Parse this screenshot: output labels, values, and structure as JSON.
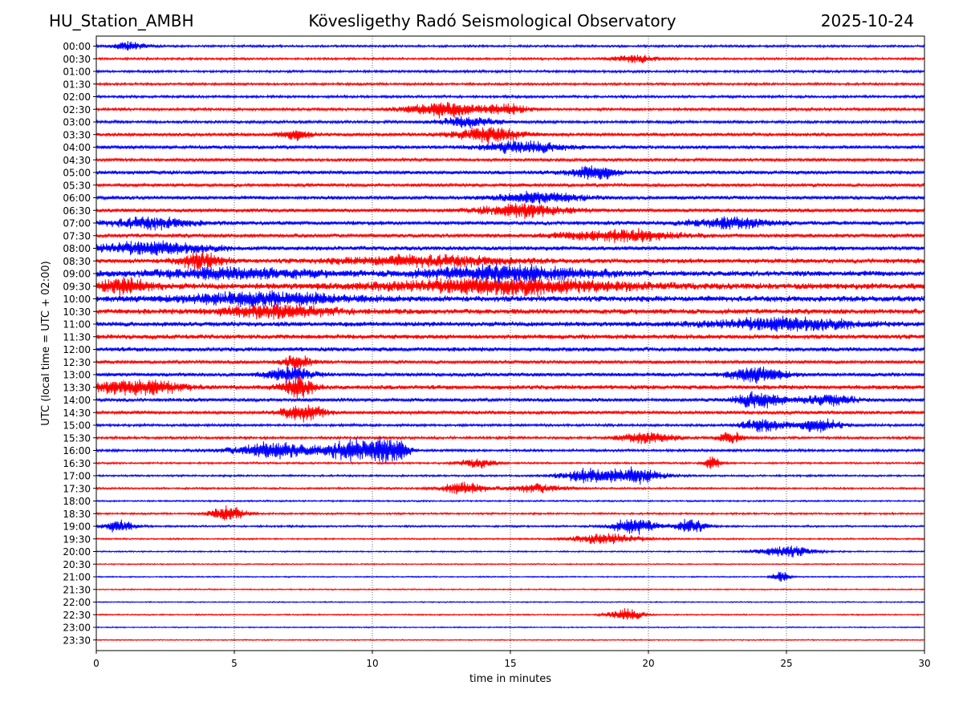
{
  "header": {
    "station": "HU_Station_AMBH",
    "title": "Kövesligethy Radó Seismological Observatory",
    "date": "2025-10-24"
  },
  "chart_data": {
    "type": "line",
    "subtype": "helicorder",
    "xlabel": "time in minutes",
    "ylabel": "UTC (local time = UTC + 02:00)",
    "xlim": [
      0,
      30
    ],
    "xticks": [
      0,
      5,
      10,
      15,
      20,
      25,
      30
    ],
    "grid": "vertical dotted lines at each x tick",
    "colors": {
      "even_rows": "#0000ff",
      "odd_rows": "#ff0000"
    },
    "rows": [
      {
        "label": "00:00",
        "activity": 0.35,
        "bursts": [
          [
            1.2,
            0.6,
            1.3
          ]
        ]
      },
      {
        "label": "00:30",
        "activity": 0.35,
        "bursts": [
          [
            19.5,
            0.8,
            1.2
          ]
        ]
      },
      {
        "label": "01:00",
        "activity": 0.38,
        "bursts": []
      },
      {
        "label": "01:30",
        "activity": 0.38,
        "bursts": []
      },
      {
        "label": "02:00",
        "activity": 0.4,
        "bursts": []
      },
      {
        "label": "02:30",
        "activity": 0.45,
        "bursts": [
          [
            12.5,
            1.2,
            2.4
          ],
          [
            14.8,
            0.8,
            1.8
          ]
        ]
      },
      {
        "label": "03:00",
        "activity": 0.45,
        "bursts": [
          [
            13.5,
            1.0,
            1.6
          ]
        ]
      },
      {
        "label": "03:30",
        "activity": 0.55,
        "bursts": [
          [
            14.2,
            1.2,
            2.2
          ],
          [
            7.2,
            0.6,
            1.4
          ]
        ]
      },
      {
        "label": "04:00",
        "activity": 0.55,
        "bursts": [
          [
            15.5,
            1.5,
            1.8
          ]
        ]
      },
      {
        "label": "04:30",
        "activity": 0.5,
        "bursts": []
      },
      {
        "label": "05:00",
        "activity": 0.6,
        "bursts": [
          [
            18.0,
            0.8,
            2.2
          ]
        ]
      },
      {
        "label": "05:30",
        "activity": 0.55,
        "bursts": []
      },
      {
        "label": "06:00",
        "activity": 0.6,
        "bursts": [
          [
            16.0,
            1.5,
            1.5
          ]
        ]
      },
      {
        "label": "06:30",
        "activity": 0.6,
        "bursts": [
          [
            15.5,
            1.5,
            2.0
          ]
        ]
      },
      {
        "label": "07:00",
        "activity": 0.65,
        "bursts": [
          [
            2.0,
            1.5,
            1.6
          ],
          [
            23.0,
            1.5,
            1.6
          ]
        ]
      },
      {
        "label": "07:30",
        "activity": 0.65,
        "bursts": [
          [
            19.0,
            2.0,
            1.8
          ]
        ]
      },
      {
        "label": "08:00",
        "activity": 0.7,
        "bursts": [
          [
            2.0,
            2.0,
            1.8
          ]
        ]
      },
      {
        "label": "08:30",
        "activity": 0.75,
        "bursts": [
          [
            3.8,
            0.8,
            2.4
          ],
          [
            12.0,
            3.0,
            1.5
          ]
        ]
      },
      {
        "label": "09:00",
        "activity": 0.9,
        "bursts": [
          [
            15.0,
            3.0,
            2.2
          ],
          [
            5.0,
            3.0,
            1.5
          ]
        ]
      },
      {
        "label": "09:30",
        "activity": 1.0,
        "bursts": [
          [
            15.0,
            4.0,
            2.2
          ],
          [
            1.0,
            1.0,
            2.2
          ]
        ]
      },
      {
        "label": "10:00",
        "activity": 0.95,
        "bursts": [
          [
            6.0,
            3.0,
            1.8
          ]
        ]
      },
      {
        "label": "10:30",
        "activity": 0.85,
        "bursts": [
          [
            6.5,
            2.0,
            1.8
          ]
        ]
      },
      {
        "label": "11:00",
        "activity": 0.8,
        "bursts": [
          [
            25.0,
            2.5,
            1.8
          ]
        ]
      },
      {
        "label": "11:30",
        "activity": 0.75,
        "bursts": []
      },
      {
        "label": "12:00",
        "activity": 0.7,
        "bursts": []
      },
      {
        "label": "12:30",
        "activity": 0.55,
        "bursts": [
          [
            7.3,
            0.5,
            2.0
          ]
        ]
      },
      {
        "label": "13:00",
        "activity": 0.6,
        "bursts": [
          [
            7.0,
            0.8,
            2.2
          ],
          [
            24.0,
            1.0,
            2.4
          ]
        ]
      },
      {
        "label": "13:30",
        "activity": 0.7,
        "bursts": [
          [
            1.5,
            1.5,
            2.4
          ],
          [
            7.3,
            0.6,
            3.2
          ]
        ]
      },
      {
        "label": "14:00",
        "activity": 0.55,
        "bursts": [
          [
            24.0,
            0.8,
            2.8
          ],
          [
            26.5,
            1.0,
            1.6
          ]
        ]
      },
      {
        "label": "14:30",
        "activity": 0.55,
        "bursts": [
          [
            7.5,
            0.8,
            2.4
          ]
        ]
      },
      {
        "label": "15:00",
        "activity": 0.4,
        "bursts": [
          [
            24.2,
            0.8,
            2.0
          ],
          [
            26.2,
            0.8,
            2.0
          ]
        ]
      },
      {
        "label": "15:30",
        "activity": 0.4,
        "bursts": [
          [
            20.0,
            1.0,
            1.8
          ],
          [
            23.0,
            0.5,
            1.6
          ]
        ]
      },
      {
        "label": "16:00",
        "activity": 0.4,
        "bursts": [
          [
            6.5,
            1.5,
            2.6
          ],
          [
            9.2,
            0.8,
            3.2
          ],
          [
            10.3,
            0.6,
            3.2
          ],
          [
            11.0,
            0.4,
            2.6
          ]
        ]
      },
      {
        "label": "16:30",
        "activity": 0.3,
        "bursts": [
          [
            13.8,
            0.6,
            1.6
          ],
          [
            22.3,
            0.3,
            2.0
          ]
        ]
      },
      {
        "label": "17:00",
        "activity": 0.3,
        "bursts": [
          [
            17.8,
            1.0,
            2.0
          ],
          [
            19.5,
            1.0,
            2.4
          ]
        ]
      },
      {
        "label": "17:30",
        "activity": 0.3,
        "bursts": [
          [
            13.3,
            0.8,
            2.0
          ],
          [
            16.0,
            1.0,
            1.4
          ]
        ]
      },
      {
        "label": "18:00",
        "activity": 0.25,
        "bursts": []
      },
      {
        "label": "18:30",
        "activity": 0.3,
        "bursts": [
          [
            4.8,
            0.6,
            2.6
          ]
        ]
      },
      {
        "label": "19:00",
        "activity": 0.3,
        "bursts": [
          [
            0.8,
            0.6,
            1.8
          ],
          [
            19.5,
            0.8,
            2.4
          ],
          [
            21.5,
            0.6,
            2.0
          ]
        ]
      },
      {
        "label": "19:30",
        "activity": 0.25,
        "bursts": [
          [
            18.5,
            1.2,
            1.6
          ]
        ]
      },
      {
        "label": "20:00",
        "activity": 0.22,
        "bursts": [
          [
            25.0,
            1.0,
            1.8
          ]
        ]
      },
      {
        "label": "20:30",
        "activity": 0.2,
        "bursts": []
      },
      {
        "label": "21:00",
        "activity": 0.2,
        "bursts": [
          [
            24.8,
            0.3,
            1.8
          ]
        ]
      },
      {
        "label": "21:30",
        "activity": 0.2,
        "bursts": []
      },
      {
        "label": "22:00",
        "activity": 0.18,
        "bursts": []
      },
      {
        "label": "22:30",
        "activity": 0.22,
        "bursts": [
          [
            19.2,
            0.6,
            2.0
          ]
        ]
      },
      {
        "label": "23:00",
        "activity": 0.18,
        "bursts": []
      },
      {
        "label": "23:30",
        "activity": 0.18,
        "bursts": []
      }
    ]
  }
}
